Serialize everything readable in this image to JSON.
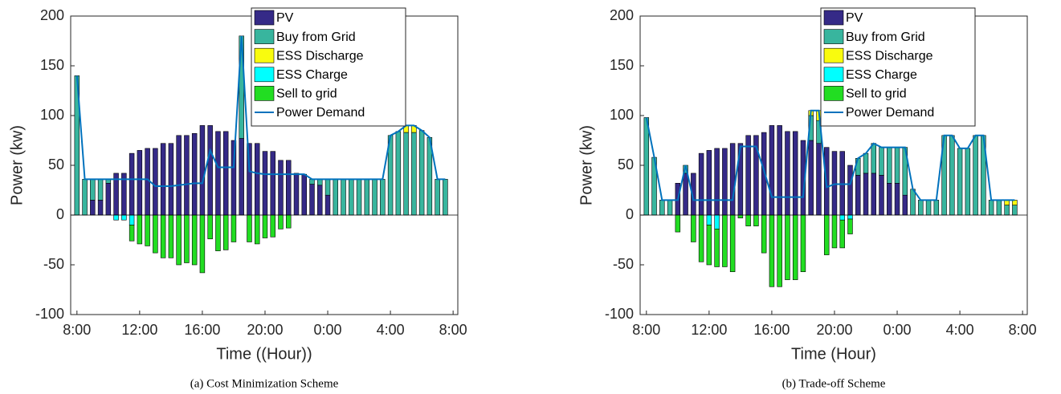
{
  "chart_data": [
    {
      "type": "bar",
      "stacked": true,
      "caption": "(a) Cost Minimization Scheme",
      "xlabel": "Time ((Hour))",
      "ylabel": "Power (kw)",
      "x": [
        8,
        8.5,
        9,
        9.5,
        10,
        10.5,
        11,
        11.5,
        12,
        12.5,
        13,
        13.5,
        14,
        14.5,
        15,
        15.5,
        16,
        16.5,
        17,
        17.5,
        18,
        18.5,
        19,
        19.5,
        20,
        20.5,
        21,
        21.5,
        22,
        22.5,
        23,
        23.5,
        24,
        24.5,
        25,
        25.5,
        26,
        26.5,
        27,
        27.5,
        28,
        28.5,
        29,
        29.5,
        30,
        30.5,
        31,
        31.5
      ],
      "xlim": [
        7.6,
        32.3
      ],
      "xticks": [
        {
          "value": 8,
          "label": "8:00"
        },
        {
          "value": 12,
          "label": "12:00"
        },
        {
          "value": 16,
          "label": "16:00"
        },
        {
          "value": 20,
          "label": "20:00"
        },
        {
          "value": 24,
          "label": "0:00"
        },
        {
          "value": 28,
          "label": "4:00"
        },
        {
          "value": 32,
          "label": "8:00"
        }
      ],
      "ylim": [
        -100,
        200
      ],
      "yticks": [
        -100,
        -50,
        0,
        50,
        100,
        150,
        200
      ],
      "legend": "top-right",
      "series": [
        {
          "name": "PV",
          "color": "#352a87",
          "values": [
            0,
            0,
            15,
            15,
            32,
            42,
            42,
            62,
            65,
            67,
            67,
            72,
            72,
            80,
            80,
            82,
            90,
            90,
            84,
            84,
            75,
            77,
            72,
            72,
            64,
            64,
            55,
            55,
            42,
            41,
            31,
            30,
            20,
            0,
            0,
            0,
            0,
            0,
            0,
            0,
            0,
            0,
            0,
            0,
            0,
            0,
            0,
            0
          ]
        },
        {
          "name": "Buy from Grid",
          "color": "#38b59e",
          "values": [
            140,
            36,
            21,
            21,
            4,
            0,
            0,
            0,
            0,
            0,
            0,
            0,
            0,
            0,
            0,
            0,
            0,
            0,
            0,
            0,
            0,
            103,
            0,
            0,
            0,
            0,
            0,
            0,
            0,
            0,
            5,
            6,
            16,
            36,
            36,
            36,
            36,
            36,
            36,
            36,
            80,
            84,
            83,
            83,
            85,
            78,
            36,
            36
          ]
        },
        {
          "name": "ESS Discharge",
          "color": "#f9fb0e",
          "values": [
            0,
            0,
            0,
            0,
            0,
            0,
            0,
            0,
            0,
            0,
            0,
            0,
            0,
            0,
            0,
            0,
            0,
            0,
            0,
            0,
            0,
            0,
            0,
            0,
            0,
            0,
            0,
            0,
            0,
            0,
            0,
            0,
            0,
            0,
            0,
            0,
            0,
            0,
            0,
            0,
            0,
            0,
            7,
            7,
            0,
            0,
            0,
            0
          ]
        },
        {
          "name": "ESS Charge",
          "color": "#00ffff",
          "values": [
            0,
            0,
            0,
            0,
            0,
            -5,
            -5,
            -10,
            0,
            0,
            0,
            0,
            0,
            0,
            0,
            0,
            0,
            0,
            0,
            0,
            0,
            0,
            0,
            0,
            0,
            0,
            0,
            0,
            0,
            0,
            0,
            0,
            0,
            0,
            0,
            0,
            0,
            0,
            0,
            0,
            0,
            0,
            0,
            0,
            0,
            0,
            0,
            0
          ]
        },
        {
          "name": "Sell to grid",
          "color": "#22dd22",
          "values": [
            0,
            0,
            0,
            0,
            0,
            0,
            0,
            -16,
            -29,
            -31,
            -38,
            -43,
            -43,
            -50,
            -48,
            -50,
            -58,
            -24,
            -36,
            -35,
            -27,
            0,
            -27,
            -29,
            -23,
            -22,
            -14,
            -13,
            0,
            0,
            0,
            0,
            0,
            0,
            0,
            0,
            0,
            0,
            0,
            0,
            0,
            0,
            0,
            0,
            0,
            0,
            0,
            0
          ]
        },
        {
          "name": "Power Demand",
          "type": "line",
          "color": "#0072bd",
          "values": [
            140,
            36,
            36,
            36,
            36,
            36,
            36,
            36,
            36,
            36,
            29,
            29,
            29,
            30,
            31,
            32,
            32,
            65,
            48,
            48,
            48,
            180,
            44,
            42,
            41,
            41,
            41,
            41,
            41,
            41,
            36,
            36,
            36,
            36,
            36,
            36,
            36,
            36,
            36,
            36,
            80,
            84,
            90,
            90,
            85,
            78,
            36,
            36
          ]
        }
      ]
    },
    {
      "type": "bar",
      "stacked": true,
      "caption": "(b) Trade-off Scheme",
      "xlabel": "Time (Hour)",
      "ylabel": "Power (kw)",
      "x": [
        8,
        8.5,
        9,
        9.5,
        10,
        10.5,
        11,
        11.5,
        12,
        12.5,
        13,
        13.5,
        14,
        14.5,
        15,
        15.5,
        16,
        16.5,
        17,
        17.5,
        18,
        18.5,
        19,
        19.5,
        20,
        20.5,
        21,
        21.5,
        22,
        22.5,
        23,
        23.5,
        24,
        24.5,
        25,
        25.5,
        26,
        26.5,
        27,
        27.5,
        28,
        28.5,
        29,
        29.5,
        30,
        30.5,
        31,
        31.5
      ],
      "xlim": [
        7.6,
        32.3
      ],
      "xticks": [
        {
          "value": 8,
          "label": "8:00"
        },
        {
          "value": 12,
          "label": "12:00"
        },
        {
          "value": 16,
          "label": "16:00"
        },
        {
          "value": 20,
          "label": "20:00"
        },
        {
          "value": 24,
          "label": "0:00"
        },
        {
          "value": 28,
          "label": "4:00"
        },
        {
          "value": 32,
          "label": "8:00"
        }
      ],
      "ylim": [
        -100,
        200
      ],
      "yticks": [
        -100,
        -50,
        0,
        50,
        100,
        150,
        200
      ],
      "legend": "top-right",
      "series": [
        {
          "name": "PV",
          "color": "#352a87",
          "values": [
            0,
            0,
            0,
            0,
            32,
            42,
            42,
            62,
            65,
            67,
            67,
            72,
            72,
            80,
            80,
            83,
            90,
            90,
            84,
            84,
            75,
            75,
            72,
            68,
            64,
            64,
            50,
            40,
            42,
            42,
            40,
            32,
            32,
            20,
            0,
            0,
            0,
            0,
            0,
            0,
            0,
            0,
            0,
            0,
            0,
            0,
            0,
            0
          ]
        },
        {
          "name": "Buy from Grid",
          "color": "#38b59e",
          "values": [
            98,
            58,
            15,
            15,
            0,
            8,
            0,
            0,
            0,
            0,
            0,
            0,
            0,
            0,
            0,
            0,
            0,
            0,
            0,
            0,
            0,
            25,
            23,
            0,
            0,
            0,
            0,
            17,
            20,
            30,
            28,
            36,
            36,
            48,
            26,
            15,
            15,
            15,
            80,
            80,
            67,
            67,
            80,
            80,
            15,
            15,
            10,
            10
          ]
        },
        {
          "name": "ESS Discharge",
          "color": "#f9fb0e",
          "values": [
            0,
            0,
            0,
            0,
            0,
            0,
            0,
            0,
            0,
            0,
            0,
            0,
            0,
            0,
            0,
            0,
            0,
            0,
            0,
            0,
            0,
            5,
            10,
            0,
            0,
            0,
            0,
            0,
            0,
            0,
            0,
            0,
            0,
            0,
            0,
            0,
            0,
            0,
            0,
            0,
            0,
            0,
            0,
            0,
            0,
            0,
            5,
            5
          ]
        },
        {
          "name": "ESS Charge",
          "color": "#00ffff",
          "values": [
            0,
            0,
            0,
            0,
            0,
            0,
            0,
            0,
            -10,
            -14,
            0,
            0,
            0,
            0,
            0,
            0,
            0,
            0,
            0,
            0,
            0,
            0,
            0,
            0,
            0,
            -5,
            -4,
            0,
            0,
            0,
            0,
            0,
            0,
            0,
            0,
            0,
            0,
            0,
            0,
            0,
            0,
            0,
            0,
            0,
            0,
            0,
            0,
            0
          ]
        },
        {
          "name": "Sell to grid",
          "color": "#22dd22",
          "values": [
            0,
            0,
            0,
            0,
            -17,
            0,
            -27,
            -47,
            -40,
            -38,
            -52,
            -57,
            -3,
            -11,
            -11,
            -38,
            -72,
            -72,
            -65,
            -65,
            -57,
            0,
            0,
            -40,
            -33,
            -28,
            -15,
            0,
            0,
            0,
            0,
            0,
            0,
            0,
            0,
            0,
            0,
            0,
            0,
            0,
            0,
            0,
            0,
            0,
            0,
            0,
            0,
            0
          ]
        },
        {
          "name": "Power Demand",
          "type": "line",
          "color": "#0072bd",
          "values": [
            98,
            58,
            15,
            15,
            15,
            50,
            15,
            15,
            15,
            15,
            15,
            15,
            69,
            69,
            69,
            45,
            18,
            18,
            18,
            18,
            18,
            105,
            105,
            28,
            31,
            31,
            31,
            57,
            62,
            72,
            68,
            68,
            68,
            68,
            26,
            15,
            15,
            15,
            80,
            80,
            67,
            67,
            80,
            80,
            15,
            15,
            15,
            15
          ]
        }
      ]
    }
  ]
}
